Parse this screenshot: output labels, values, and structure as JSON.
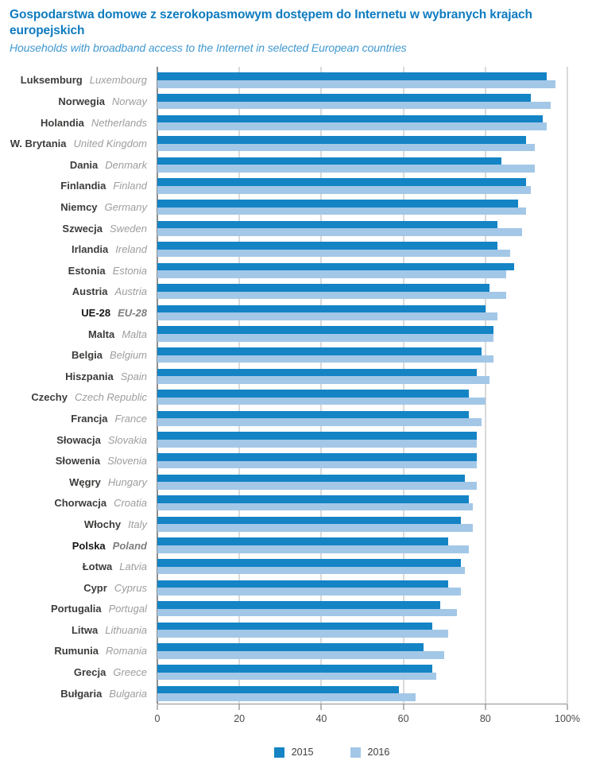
{
  "header": {
    "title_pl": "Gospodarstwa domowe z szerokopasmowym dostępem do Internetu w wybranych krajach europejskich",
    "title_en": "Households with broadband access to the Internet in selected European countries"
  },
  "chart_data": {
    "type": "bar",
    "orientation": "horizontal",
    "unit": "%",
    "xlim": [
      0,
      100
    ],
    "x_tick_labels": [
      "0",
      "20",
      "40",
      "60",
      "80",
      "100%"
    ],
    "grid": true,
    "legend_position": "bottom",
    "series_names": [
      "2015",
      "2016"
    ],
    "colors": {
      "2015": "#1484c5",
      "2016": "#a3c7e7"
    },
    "rows": [
      {
        "pl": "Luksemburg",
        "en": "Luxembourg",
        "v2015": 95,
        "v2016": 97,
        "emphasis": false
      },
      {
        "pl": "Norwegia",
        "en": "Norway",
        "v2015": 91,
        "v2016": 96,
        "emphasis": false
      },
      {
        "pl": "Holandia",
        "en": "Netherlands",
        "v2015": 94,
        "v2016": 95,
        "emphasis": false
      },
      {
        "pl": "W. Brytania",
        "en": "United Kingdom",
        "v2015": 90,
        "v2016": 92,
        "emphasis": false
      },
      {
        "pl": "Dania",
        "en": "Denmark",
        "v2015": 84,
        "v2016": 92,
        "emphasis": false
      },
      {
        "pl": "Finlandia",
        "en": "Finland",
        "v2015": 90,
        "v2016": 91,
        "emphasis": false
      },
      {
        "pl": "Niemcy",
        "en": "Germany",
        "v2015": 88,
        "v2016": 90,
        "emphasis": false
      },
      {
        "pl": "Szwecja",
        "en": "Sweden",
        "v2015": 83,
        "v2016": 89,
        "emphasis": false
      },
      {
        "pl": "Irlandia",
        "en": "Ireland",
        "v2015": 83,
        "v2016": 86,
        "emphasis": false
      },
      {
        "pl": "Estonia",
        "en": "Estonia",
        "v2015": 87,
        "v2016": 85,
        "emphasis": false
      },
      {
        "pl": "Austria",
        "en": "Austria",
        "v2015": 81,
        "v2016": 85,
        "emphasis": false
      },
      {
        "pl": "UE-28",
        "en": "EU-28",
        "v2015": 80,
        "v2016": 83,
        "emphasis": true
      },
      {
        "pl": "Malta",
        "en": "Malta",
        "v2015": 82,
        "v2016": 82,
        "emphasis": false
      },
      {
        "pl": "Belgia",
        "en": "Belgium",
        "v2015": 79,
        "v2016": 82,
        "emphasis": false
      },
      {
        "pl": "Hiszpania",
        "en": "Spain",
        "v2015": 78,
        "v2016": 81,
        "emphasis": false
      },
      {
        "pl": "Czechy",
        "en": "Czech Republic",
        "v2015": 76,
        "v2016": 80,
        "emphasis": false
      },
      {
        "pl": "Francja",
        "en": "France",
        "v2015": 76,
        "v2016": 79,
        "emphasis": false
      },
      {
        "pl": "Słowacja",
        "en": "Slovakia",
        "v2015": 78,
        "v2016": 78,
        "emphasis": false
      },
      {
        "pl": "Słowenia",
        "en": "Slovenia",
        "v2015": 78,
        "v2016": 78,
        "emphasis": false
      },
      {
        "pl": "Węgry",
        "en": "Hungary",
        "v2015": 75,
        "v2016": 78,
        "emphasis": false
      },
      {
        "pl": "Chorwacja",
        "en": "Croatia",
        "v2015": 76,
        "v2016": 77,
        "emphasis": false
      },
      {
        "pl": "Włochy",
        "en": "Italy",
        "v2015": 74,
        "v2016": 77,
        "emphasis": false
      },
      {
        "pl": "Polska",
        "en": "Poland",
        "v2015": 71,
        "v2016": 76,
        "emphasis": true
      },
      {
        "pl": "Łotwa",
        "en": "Latvia",
        "v2015": 74,
        "v2016": 75,
        "emphasis": false
      },
      {
        "pl": "Cypr",
        "en": "Cyprus",
        "v2015": 71,
        "v2016": 74,
        "emphasis": false
      },
      {
        "pl": "Portugalia",
        "en": "Portugal",
        "v2015": 69,
        "v2016": 73,
        "emphasis": false
      },
      {
        "pl": "Litwa",
        "en": "Lithuania",
        "v2015": 67,
        "v2016": 71,
        "emphasis": false
      },
      {
        "pl": "Rumunia",
        "en": "Romania",
        "v2015": 65,
        "v2016": 70,
        "emphasis": false
      },
      {
        "pl": "Grecja",
        "en": "Greece",
        "v2015": 67,
        "v2016": 68,
        "emphasis": false
      },
      {
        "pl": "Bułgaria",
        "en": "Bulgaria",
        "v2015": 59,
        "v2016": 63,
        "emphasis": false
      }
    ]
  },
  "legend": {
    "item_2015": "2015",
    "item_2016": "2016"
  }
}
